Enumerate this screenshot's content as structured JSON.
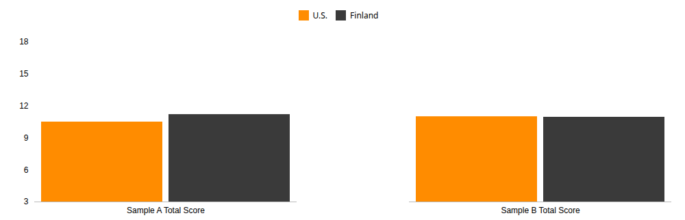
{
  "chart_data": {
    "type": "bar",
    "categories": [
      "Sample A Total Score",
      "Sample B Total Score"
    ],
    "series": [
      {
        "name": "U.S.",
        "color": "#FF8C00",
        "values": [
          10.5,
          11.0
        ]
      },
      {
        "name": "Finland",
        "color": "#3a3a3a",
        "values": [
          11.2,
          10.95
        ]
      }
    ],
    "ylim": [
      3,
      18
    ],
    "yticks": [
      3,
      6,
      9,
      12,
      15,
      18
    ],
    "grid": false,
    "legend": "top"
  }
}
